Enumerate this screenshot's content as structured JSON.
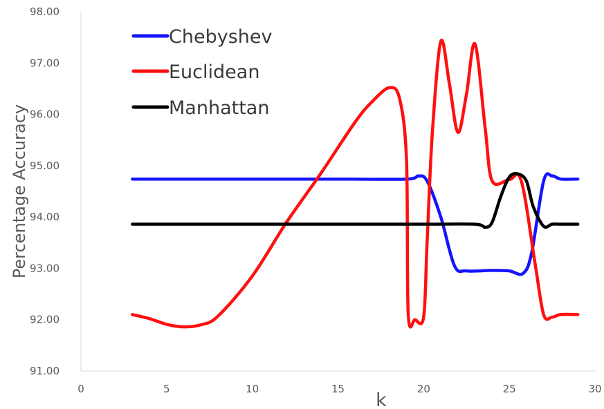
{
  "chart_data": {
    "type": "line",
    "xlabel": "k",
    "ylabel": "Percentage Accuracy",
    "xlim": [
      0,
      30
    ],
    "ylim": [
      91,
      98
    ],
    "x_ticks": [
      "0",
      "5",
      "10",
      "15",
      "20",
      "25",
      "30"
    ],
    "y_ticks": [
      "91.00",
      "92.00",
      "93.00",
      "94.00",
      "95.00",
      "96.00",
      "97.00",
      "98.00"
    ],
    "legend_position": "top-left",
    "series": [
      {
        "name": "Chebyshev",
        "color": "#1414ff",
        "x": [
          3,
          5,
          10,
          15,
          19,
          19.7,
          20.2,
          21,
          21.8,
          22.5,
          24,
          25,
          25.8,
          26.3,
          27,
          27.5,
          28,
          29
        ],
        "y": [
          94.74,
          94.74,
          94.74,
          94.74,
          94.74,
          94.8,
          94.7,
          94.0,
          93.05,
          92.95,
          92.96,
          92.95,
          92.9,
          93.3,
          94.7,
          94.8,
          94.74,
          94.74
        ]
      },
      {
        "name": "Euclidean",
        "color": "#ff1010",
        "x": [
          3,
          4,
          5,
          6,
          7,
          8,
          10,
          12,
          14,
          16,
          17,
          18,
          18.6,
          19,
          19.1,
          19.5,
          20,
          20.2,
          20.5,
          21,
          21.5,
          22,
          22.5,
          23,
          23.6,
          24,
          25,
          25.7,
          26.5,
          27,
          27.5,
          28,
          29
        ],
        "y": [
          92.1,
          92.02,
          91.91,
          91.86,
          91.9,
          92.07,
          92.85,
          93.9,
          94.85,
          95.85,
          96.25,
          96.52,
          96.3,
          95.1,
          92.12,
          92.0,
          92.05,
          93.5,
          95.6,
          97.42,
          96.6,
          95.65,
          96.4,
          97.37,
          95.7,
          94.7,
          94.73,
          94.7,
          93.1,
          92.1,
          92.05,
          92.1,
          92.1
        ]
      },
      {
        "name": "Manhattan",
        "color": "#000000",
        "x": [
          3,
          10,
          20,
          23,
          23.6,
          24,
          24.5,
          25,
          25.5,
          26,
          26.4,
          27,
          27.5,
          28,
          29
        ],
        "y": [
          93.86,
          93.86,
          93.86,
          93.86,
          93.8,
          93.9,
          94.4,
          94.78,
          94.84,
          94.7,
          94.2,
          93.82,
          93.86,
          93.86,
          93.86
        ]
      }
    ]
  }
}
